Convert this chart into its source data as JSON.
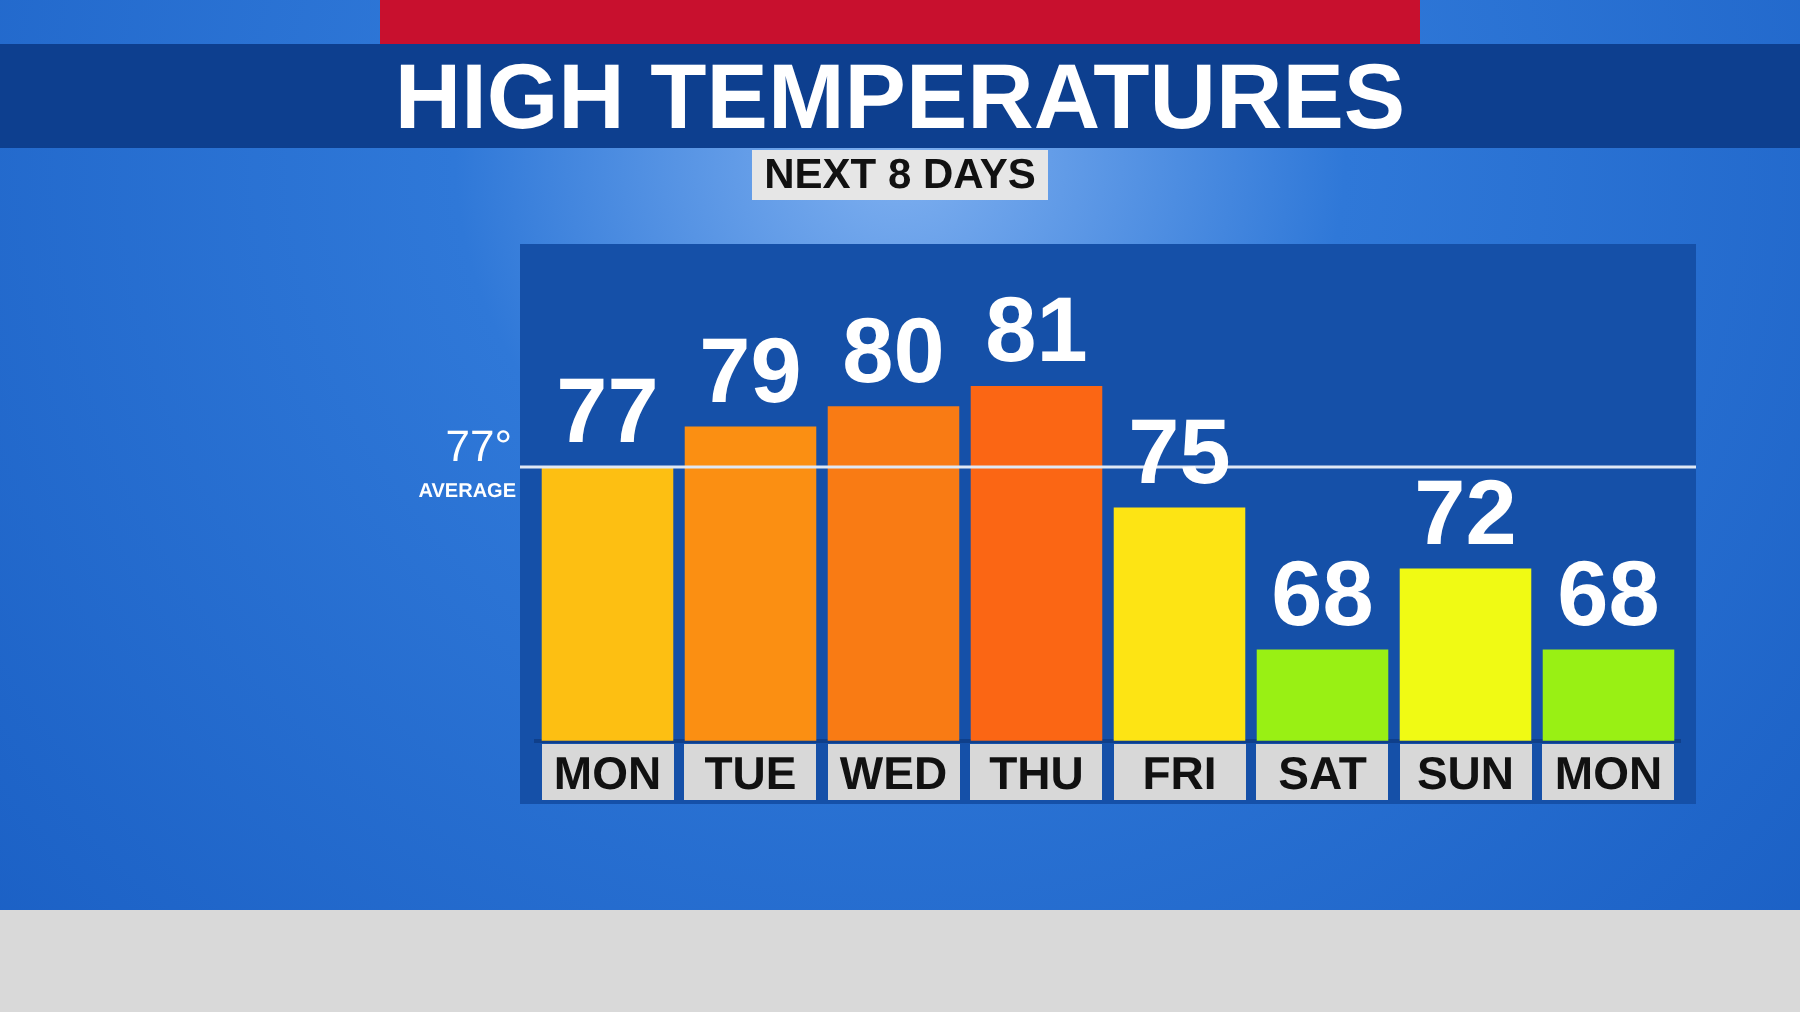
{
  "chart_data": {
    "type": "bar",
    "title": "HIGH TEMPERATURES",
    "subtitle": "NEXT 8 DAYS",
    "categories": [
      "MON",
      "TUE",
      "WED",
      "THU",
      "FRI",
      "SAT",
      "SUN",
      "MON"
    ],
    "values": [
      77,
      79,
      80,
      81,
      75,
      68,
      72,
      68
    ],
    "colors": [
      "#fdbf12",
      "#fb8f12",
      "#f97b14",
      "#fb6614",
      "#fde414",
      "#99f014",
      "#f0fa14",
      "#99f014"
    ],
    "ylim": [
      63.5,
      88
    ],
    "tick_labels": "x",
    "legend": false,
    "data_labels": true,
    "ref_lines": [
      {
        "axis": "y",
        "value": 77,
        "label": "77°",
        "color": "#dfe8f5"
      }
    ],
    "annotations": [
      "AVERAGE"
    ]
  }
}
